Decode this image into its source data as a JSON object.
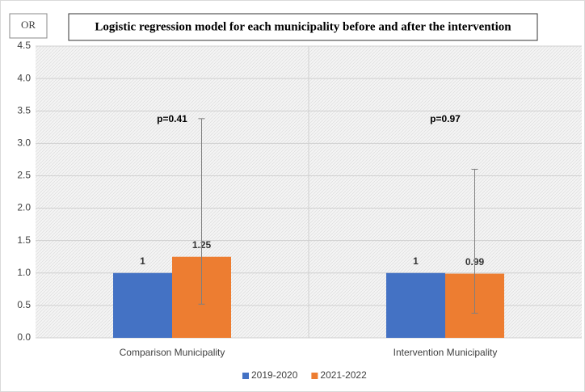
{
  "chart_data": {
    "type": "bar",
    "title": "Logistic regression model for each municipality before and after the intervention",
    "y_label": "OR",
    "categories": [
      "Comparison Municipality",
      "Intervention Municipality"
    ],
    "series": [
      {
        "name": "2019-2020",
        "color": "#4472c4",
        "values": [
          1,
          1
        ]
      },
      {
        "name": "2021-2022",
        "color": "#ed7d31",
        "values": [
          1.25,
          0.99
        ],
        "error_low": [
          0.52,
          0.38
        ],
        "error_high": [
          3.38,
          2.6
        ]
      }
    ],
    "annotations": [
      "p=0.41",
      "p=0.97"
    ],
    "ylim": [
      0,
      4.5
    ],
    "yticks": [
      {
        "value": 0,
        "label": "0.0"
      },
      0.5,
      {
        "value": 1,
        "label": "1.0"
      },
      1.5,
      {
        "value": 2,
        "label": "2.0"
      },
      2.5,
      {
        "value": 3,
        "label": "3.0"
      },
      3.5,
      {
        "value": 4,
        "label": "4.0"
      },
      4.5
    ],
    "grid": true,
    "legend": "bottom"
  }
}
